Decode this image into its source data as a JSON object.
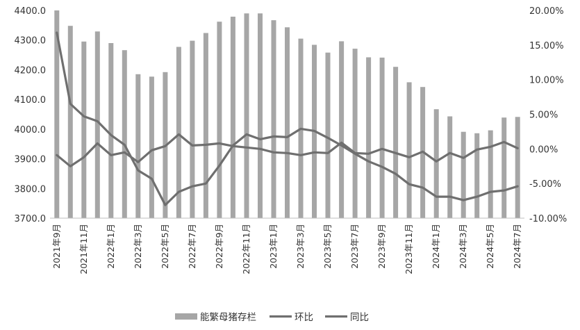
{
  "chart_data": {
    "type": "bar",
    "title": "",
    "categories": [
      "2021年9月",
      "2021年10月",
      "2021年11月",
      "2021年12月",
      "2022年1月",
      "2022年2月",
      "2022年3月",
      "2022年4月",
      "2022年5月",
      "2022年6月",
      "2022年7月",
      "2022年8月",
      "2022年9月",
      "2022年10月",
      "2022年11月",
      "2022年12月",
      "2023年1月",
      "2023年2月",
      "2023年3月",
      "2023年4月",
      "2023年5月",
      "2023年6月",
      "2023年7月",
      "2023年8月",
      "2023年9月",
      "2023年10月",
      "2023年11月",
      "2023年12月",
      "2024年1月",
      "2024年2月",
      "2024年3月",
      "2024年4月",
      "2024年5月",
      "2024年6月",
      "2024年7月"
    ],
    "x_tick_labels": [
      "2021年9月",
      "2021年11月",
      "2022年1月",
      "2022年3月",
      "2022年5月",
      "2022年7月",
      "2022年9月",
      "2022年11月",
      "2023年1月",
      "2023年3月",
      "2023年5月",
      "2023年7月",
      "2023年9月",
      "2023年11月",
      "2024年1月",
      "2024年3月",
      "2024年5月",
      "2024年7月"
    ],
    "y_left": {
      "ylim": [
        3700,
        4400
      ],
      "ticks": [
        "3700.0",
        "3800.0",
        "3900.0",
        "4000.0",
        "4100.0",
        "4200.0",
        "4300.0",
        "4400.0"
      ],
      "ylabel": ""
    },
    "y_right": {
      "ylim": [
        -10,
        20
      ],
      "ticks": [
        "-10.00%",
        "-5.00%",
        "0.00%",
        "5.00%",
        "10.00%",
        "15.00%",
        "20.00%"
      ],
      "ylabel": ""
    },
    "series": [
      {
        "name": "能繁母猪存栏",
        "type": "bar",
        "axis": "left",
        "color": "#a6a6a6",
        "values": [
          4400,
          4348,
          4295,
          4329,
          4290,
          4266,
          4185,
          4177,
          4192,
          4277,
          4298,
          4324,
          4362,
          4379,
          4390,
          4390,
          4367,
          4343,
          4305,
          4284,
          4258,
          4296,
          4271,
          4242,
          4241,
          4210,
          4158,
          4142,
          4067,
          4043,
          3991,
          3986,
          3996,
          4039,
          4041
        ]
      },
      {
        "name": "环比",
        "type": "line",
        "axis": "right",
        "color": "#6f6f6f",
        "values": [
          -0.9,
          -2.5,
          -1.2,
          0.8,
          -0.9,
          -0.5,
          -1.9,
          -0.2,
          0.4,
          2.1,
          0.5,
          0.6,
          0.8,
          0.4,
          0.2,
          0.0,
          -0.5,
          -0.6,
          -0.9,
          -0.5,
          -0.6,
          0.9,
          -0.6,
          -0.7,
          0.0,
          -0.6,
          -1.2,
          -0.4,
          -1.8,
          -0.6,
          -1.3,
          -0.1,
          0.3,
          1.0,
          0.1
        ]
      },
      {
        "name": "同比",
        "type": "line",
        "axis": "right",
        "color": "#6f6f6f",
        "values": [
          16.8,
          6.5,
          4.7,
          4.0,
          2.0,
          0.6,
          -3.1,
          -4.3,
          -8.1,
          -6.2,
          -5.4,
          -5.0,
          -2.4,
          0.5,
          2.1,
          1.4,
          1.8,
          1.7,
          2.9,
          2.6,
          1.6,
          0.5,
          -0.7,
          -1.8,
          -2.6,
          -3.6,
          -5.1,
          -5.6,
          -6.9,
          -6.9,
          -7.4,
          -6.9,
          -6.2,
          -6.0,
          -5.4
        ]
      }
    ],
    "legend": {
      "position": "bottom-center",
      "entries": [
        "能繁母猪存栏",
        "环比",
        "同比"
      ]
    },
    "grid": false
  }
}
